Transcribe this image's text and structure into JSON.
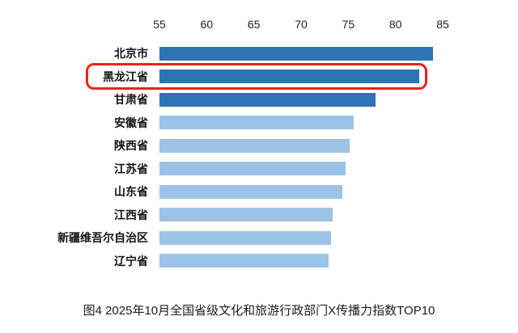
{
  "chart_data": {
    "type": "bar",
    "orientation": "horizontal",
    "title": "图4 2025年10月全国省级文化和旅游行政部门X传播力指数TOP10",
    "categories": [
      "北京市",
      "黑龙江省",
      "甘肃省",
      "安徽省",
      "陕西省",
      "江苏省",
      "山东省",
      "江西省",
      "新疆维吾尔自治区",
      "辽宁省"
    ],
    "values": [
      84.0,
      82.5,
      77.9,
      75.6,
      75.1,
      74.7,
      74.4,
      73.3,
      73.2,
      72.9
    ],
    "xlim": [
      55,
      85
    ],
    "x_ticks": [
      55,
      60,
      65,
      70,
      75,
      80,
      85
    ],
    "grid": false,
    "legend": "none",
    "highlight_index": 1,
    "dark_series_count": 3
  },
  "colors": {
    "dark_bar": "#2e74b5",
    "light_bar": "#9cc3e6",
    "highlight_border": "#e8231d",
    "text": "#1c1c1c"
  }
}
